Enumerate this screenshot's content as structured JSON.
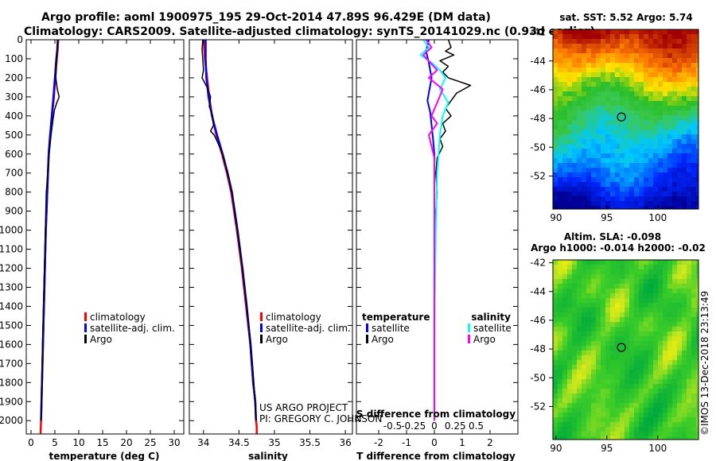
{
  "title_line1": "Argo profile: aoml 1900975_195 29-Oct-2014 47.89S 96.429E (DM data)",
  "title_line2": "Climatology: CARS2009. Satellite-adjusted climatology: synTS_20141029.nc (0.93d earlier)",
  "colors": {
    "climatology": "#ff0000",
    "satellite": "#0000ff",
    "argo": "#000000",
    "sal_satellite": "#00ffff",
    "sal_argo": "#ff00ff"
  },
  "chart_data": [
    {
      "type": "line",
      "name": "temperature",
      "xlabel": "temperature (deg C)",
      "xlim": [
        -1,
        32
      ],
      "xticks": [
        0,
        5,
        10,
        15,
        20,
        25,
        30
      ],
      "ylim": [
        2070,
        0
      ],
      "yticks": [
        0,
        100,
        200,
        300,
        400,
        500,
        600,
        700,
        800,
        900,
        1000,
        1100,
        1200,
        1300,
        1400,
        1500,
        1600,
        1700,
        1800,
        1900,
        2000
      ],
      "legend": [
        "climatology",
        "satellite-adj. clim.",
        "Argo"
      ],
      "series": [
        {
          "name": "climatology",
          "color": "#ff0000",
          "width": 2.5,
          "x": [
            5.7,
            5.6,
            5.4,
            5.1,
            4.8,
            4.4,
            4.0,
            3.7,
            3.4,
            3.1,
            2.9,
            2.7,
            2.5,
            2.3,
            2.2,
            2.1,
            2.0
          ],
          "y": [
            0,
            50,
            100,
            200,
            300,
            400,
            500,
            600,
            800,
            1000,
            1200,
            1400,
            1600,
            1800,
            1900,
            2000,
            2070
          ]
        },
        {
          "name": "satellite-adj. clim.",
          "color": "#0000ff",
          "width": 2.5,
          "x": [
            5.6,
            5.5,
            5.3,
            5.0,
            4.7,
            4.35,
            4.0,
            3.7,
            3.4,
            3.1,
            2.9,
            2.7,
            2.5,
            2.3,
            2.2,
            2.1
          ],
          "y": [
            0,
            50,
            100,
            200,
            300,
            400,
            500,
            600,
            800,
            1000,
            1200,
            1400,
            1600,
            1800,
            1900,
            2000
          ]
        },
        {
          "name": "Argo",
          "color": "#000000",
          "width": 1.5,
          "x": [
            5.6,
            5.5,
            5.3,
            5.2,
            5.5,
            5.9,
            5.4,
            4.9,
            4.6,
            4.2,
            3.8,
            3.5,
            3.2,
            3.0,
            2.8,
            2.6,
            2.4,
            2.3,
            2.2,
            2.1
          ],
          "y": [
            0,
            50,
            100,
            200,
            260,
            300,
            330,
            370,
            420,
            500,
            600,
            700,
            800,
            1000,
            1200,
            1400,
            1600,
            1800,
            1900,
            2000
          ]
        }
      ]
    },
    {
      "type": "line",
      "name": "salinity",
      "xlabel": "salinity",
      "xlim": [
        33.8,
        36.1
      ],
      "xticks": [
        34,
        34.5,
        35,
        35.5,
        36
      ],
      "xticklabels": [
        "34",
        "34.5",
        "35",
        "35.5",
        "36"
      ],
      "ylim": [
        2070,
        0
      ],
      "legend": [
        "climatology",
        "satellite-adj. clim.",
        "Argo"
      ],
      "series": [
        {
          "name": "climatology",
          "color": "#ff0000",
          "width": 2.5,
          "x": [
            34.0,
            34.02,
            34.05,
            34.08,
            34.12,
            34.18,
            34.26,
            34.33,
            34.39,
            34.47,
            34.54,
            34.6,
            34.66,
            34.7,
            34.73,
            34.74,
            34.75,
            34.75
          ],
          "y": [
            0,
            100,
            200,
            300,
            400,
            500,
            600,
            700,
            800,
            1000,
            1200,
            1400,
            1600,
            1800,
            1900,
            2000,
            2030,
            2070
          ]
        },
        {
          "name": "satellite-adj. clim.",
          "color": "#0000ff",
          "width": 2.5,
          "x": [
            34.03,
            34.03,
            34.04,
            34.07,
            34.12,
            34.19,
            34.27,
            34.34,
            34.4,
            34.48,
            34.55,
            34.61,
            34.66,
            34.7,
            34.73,
            34.74
          ],
          "y": [
            0,
            100,
            200,
            300,
            400,
            500,
            600,
            700,
            800,
            1000,
            1200,
            1400,
            1600,
            1800,
            1900,
            2000
          ]
        },
        {
          "name": "Argo",
          "color": "#000000",
          "width": 1.5,
          "x": [
            33.99,
            33.98,
            33.99,
            34.0,
            33.98,
            34.05,
            34.1,
            34.08,
            34.13,
            34.14,
            34.1,
            34.15,
            34.2,
            34.27,
            34.34,
            34.4,
            34.48,
            34.55,
            34.61,
            34.67,
            34.71,
            34.74
          ],
          "y": [
            0,
            50,
            100,
            160,
            200,
            250,
            300,
            350,
            400,
            450,
            480,
            500,
            540,
            600,
            700,
            800,
            1000,
            1200,
            1400,
            1600,
            1800,
            2000
          ]
        }
      ]
    },
    {
      "type": "line",
      "name": "difference from climatology",
      "xlabel": "T difference from climatology",
      "xlabel_top": "S difference from climatology",
      "xlim": [
        -2.8,
        3
      ],
      "xticks": [
        -2,
        -1,
        0,
        1,
        2
      ],
      "top_ticks": [
        -1.5,
        -0.75,
        0,
        0.75,
        1.5
      ],
      "top_ticklabels": [
        "-0.5",
        "-0.25",
        "0",
        "0.25",
        "0.5"
      ],
      "ylim": [
        2070,
        0
      ],
      "legend_temperature_title": "temperature",
      "legend_salinity_title": "salinity",
      "legend_temperature": [
        "satellite",
        "Argo"
      ],
      "legend_salinity": [
        "satellite",
        "Argo"
      ],
      "series": [
        {
          "name": "temperature satellite",
          "color": "#0000ff",
          "width": 2,
          "x": [
            -0.2,
            -0.3,
            -0.2,
            -0.1,
            -0.2,
            -0.25,
            -0.15,
            -0.1,
            -0.05,
            0,
            0,
            0,
            0,
            0
          ],
          "y": [
            0,
            60,
            120,
            200,
            280,
            320,
            380,
            450,
            520,
            600,
            700,
            900,
            1200,
            2000
          ]
        },
        {
          "name": "temperature Argo",
          "color": "#000000",
          "width": 1.5,
          "x": [
            0.5,
            0.6,
            0.4,
            0.7,
            0.2,
            0.5,
            0.3,
            0.5,
            1.3,
            0.8,
            0.6,
            0.4,
            0.6,
            0.3,
            0.4,
            0.2,
            0.3,
            0.1,
            0.05,
            0.1,
            0,
            0,
            0
          ],
          "y": [
            0,
            40,
            60,
            80,
            110,
            140,
            170,
            200,
            240,
            280,
            320,
            360,
            400,
            440,
            480,
            520,
            560,
            620,
            700,
            800,
            1000,
            1400,
            2000
          ]
        },
        {
          "name": "salinity satellite",
          "color": "#00ffff",
          "width": 2,
          "x": [
            -0.4,
            -0.2,
            -0.5,
            -0.1,
            0.2,
            0.4,
            0.2,
            0.5,
            0.3,
            0.2,
            0.1,
            0.05,
            0,
            0
          ],
          "y": [
            0,
            40,
            80,
            120,
            160,
            200,
            260,
            330,
            400,
            500,
            700,
            1000,
            1500,
            2000
          ]
        },
        {
          "name": "salinity Argo",
          "color": "#ff00ff",
          "width": 2,
          "x": [
            -0.3,
            -0.1,
            -0.4,
            0.1,
            -0.2,
            0.3,
            0.1,
            -0.1,
            0.1,
            -0.2,
            0,
            0,
            0,
            0
          ],
          "y": [
            0,
            40,
            80,
            160,
            200,
            260,
            330,
            400,
            440,
            500,
            620,
            700,
            900,
            2000
          ]
        }
      ],
      "footnote_line1": "US ARGO PROJECT",
      "footnote_line2": "PI: GREGORY C. JOHNSON"
    },
    {
      "type": "heatmap",
      "name": "satellite SST map",
      "title": "sat. SST: 5.52 Argo: 5.74",
      "xlim": [
        89.7,
        104
      ],
      "ylim": [
        -54.3,
        -41.8
      ],
      "xticks": [
        90,
        95,
        100
      ],
      "yticks": [
        -42,
        -44,
        -46,
        -48,
        -50,
        -52
      ],
      "marker": {
        "lon": 96.43,
        "lat": -47.89
      }
    },
    {
      "type": "heatmap",
      "name": "altimetry SLA map",
      "title_line1": "Altim. SLA: -0.098",
      "title_line2": "Argo h1000: -0.014 h2000: -0.02",
      "xlim": [
        89.7,
        104
      ],
      "ylim": [
        -54.3,
        -41.8
      ],
      "xticks": [
        90,
        95,
        100
      ],
      "yticks": [
        -42,
        -44,
        -46,
        -48,
        -50,
        -52
      ],
      "marker": {
        "lon": 96.43,
        "lat": -47.89
      }
    }
  ],
  "credit": "©IMOS 13-Dec-2018 23:13:49"
}
